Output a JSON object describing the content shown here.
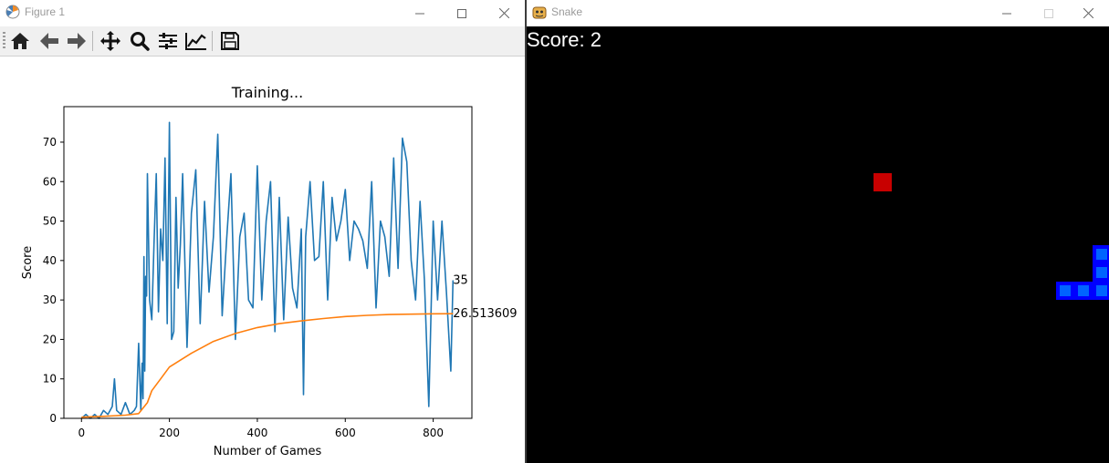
{
  "figure_window": {
    "title": "Figure 1",
    "toolbar": [
      {
        "icon": "home-icon"
      },
      {
        "icon": "back-arrow-icon"
      },
      {
        "icon": "forward-arrow-icon"
      },
      {
        "icon": "pan-icon"
      },
      {
        "icon": "zoom-icon"
      },
      {
        "icon": "configure-subplots-icon"
      },
      {
        "icon": "edit-axis-icon"
      },
      {
        "icon": "save-icon"
      }
    ]
  },
  "chart_data": {
    "type": "line",
    "title": "Training...",
    "xlabel": "Number of Games",
    "ylabel": "Score",
    "xlim": [
      -40,
      888
    ],
    "ylim": [
      0,
      79
    ],
    "xticks": [
      "0",
      "200",
      "400",
      "600",
      "800"
    ],
    "yticks": [
      "0",
      "10",
      "20",
      "30",
      "40",
      "50",
      "60",
      "70"
    ],
    "grid": false,
    "series": [
      {
        "color": "#1f77b4",
        "x": [
          0,
          10,
          20,
          30,
          40,
          50,
          60,
          70,
          75,
          80,
          90,
          100,
          110,
          120,
          125,
          130,
          135,
          138,
          140,
          142,
          144,
          146,
          148,
          150,
          155,
          160,
          165,
          170,
          175,
          180,
          185,
          190,
          195,
          200,
          205,
          210,
          215,
          220,
          225,
          230,
          240,
          250,
          260,
          270,
          280,
          290,
          300,
          310,
          320,
          330,
          340,
          350,
          360,
          370,
          380,
          390,
          400,
          410,
          420,
          430,
          440,
          450,
          460,
          470,
          480,
          490,
          500,
          505,
          510,
          520,
          530,
          540,
          550,
          560,
          570,
          580,
          590,
          600,
          610,
          620,
          630,
          640,
          650,
          660,
          670,
          680,
          690,
          700,
          710,
          720,
          730,
          740,
          750,
          760,
          770,
          780,
          790,
          800,
          810,
          820,
          830,
          840,
          845
        ],
        "values": [
          0,
          1,
          0,
          1,
          0,
          2,
          1,
          3,
          10,
          2,
          1,
          4,
          1,
          2,
          3,
          19,
          2,
          14,
          5,
          41,
          12,
          36,
          31,
          62,
          30,
          25,
          44,
          62,
          27,
          48,
          40,
          66,
          24,
          75,
          20,
          22,
          56,
          33,
          44,
          62,
          18,
          52,
          63,
          24,
          55,
          32,
          46,
          72,
          26,
          45,
          62,
          20,
          46,
          52,
          30,
          28,
          64,
          30,
          50,
          60,
          22,
          56,
          25,
          51,
          33,
          28,
          48,
          6,
          46,
          60,
          40,
          41,
          60,
          30,
          56,
          45,
          50,
          58,
          40,
          50,
          48,
          45,
          38,
          60,
          28,
          50,
          46,
          36,
          66,
          38,
          71,
          65,
          40,
          30,
          55,
          35,
          3,
          50,
          30,
          50,
          32,
          12,
          35
        ]
      },
      {
        "color": "#ff7f0e",
        "x": [
          0,
          50,
          100,
          130,
          150,
          160,
          180,
          200,
          250,
          300,
          350,
          400,
          450,
          500,
          550,
          600,
          650,
          700,
          750,
          800,
          845
        ],
        "values": [
          0.3,
          0.5,
          0.8,
          1.2,
          4,
          7,
          10,
          13,
          16.5,
          19.5,
          21.5,
          23,
          24,
          24.7,
          25.3,
          25.8,
          26.1,
          26.3,
          26.4,
          26.5,
          26.51
        ]
      }
    ],
    "annotations": [
      {
        "text": "35",
        "x": 845,
        "y": 35
      },
      {
        "text": "26.513609",
        "x": 845,
        "y": 26.51
      }
    ]
  },
  "snake_window": {
    "title": "Snake",
    "score_text": "Score: 2",
    "grid_cell": 20,
    "food": {
      "col": 18,
      "row": 8
    },
    "snake": [
      {
        "col": 29,
        "row": 14
      },
      {
        "col": 30,
        "row": 14
      },
      {
        "col": 31,
        "row": 14
      },
      {
        "col": 31,
        "row": 13
      },
      {
        "col": 31,
        "row": 12
      }
    ],
    "colors": {
      "background": "#000000",
      "food": "#c80000",
      "snake_outer": "#0000ff",
      "snake_inner": "#0064ff",
      "text": "#ffffff"
    }
  }
}
